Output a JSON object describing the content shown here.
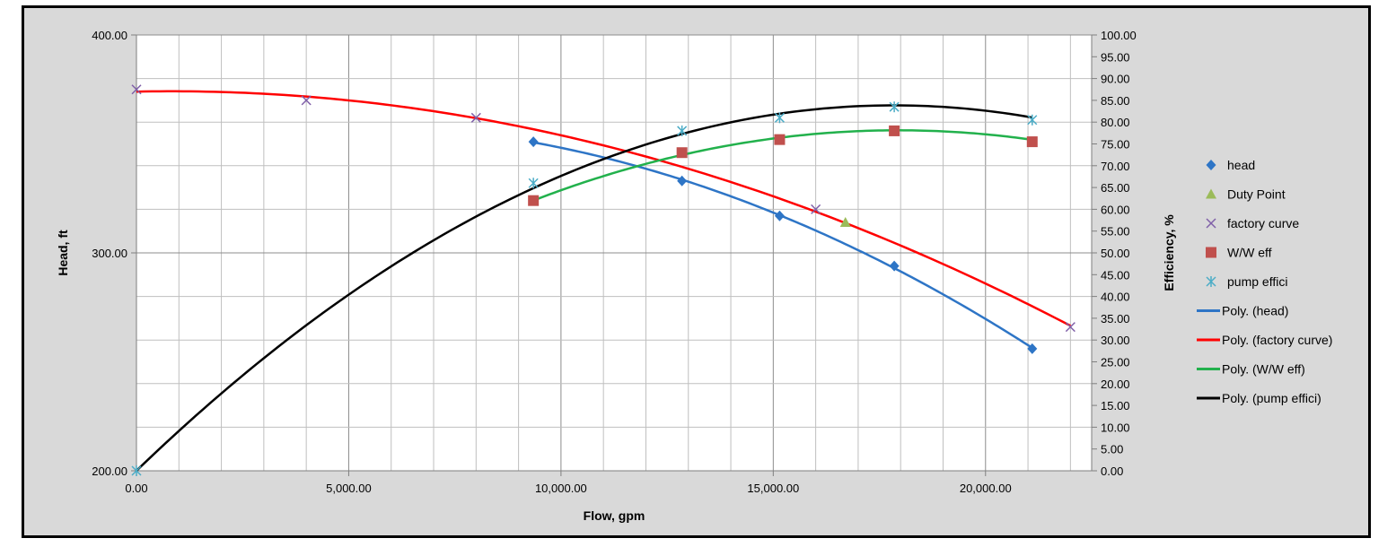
{
  "chart_data": {
    "type": "scatter",
    "xlabel": "Flow, gpm",
    "ylabel": "Head, ft",
    "y2label": "Efficiency, %",
    "xlim": [
      0,
      22500
    ],
    "ylim": [
      200,
      400
    ],
    "y2lim": [
      0,
      100
    ],
    "x_ticks": [
      "0.00",
      "5,000.00",
      "10,000.00",
      "15,000.00",
      "20,000.00"
    ],
    "y_ticks": [
      "200.00",
      "300.00",
      "400.00"
    ],
    "y2_ticks": [
      "0.00",
      "5.00",
      "10.00",
      "15.00",
      "20.00",
      "25.00",
      "30.00",
      "35.00",
      "40.00",
      "45.00",
      "50.00",
      "55.00",
      "60.00",
      "65.00",
      "70.00",
      "75.00",
      "80.00",
      "85.00",
      "90.00",
      "95.00",
      "100.00"
    ],
    "grid": true,
    "legend_position": "right",
    "series": [
      {
        "name": "head",
        "kind": "marker",
        "marker": "diamond",
        "axis": "left",
        "color": "#2e75c6",
        "x": [
          9350,
          12850,
          15150,
          17850,
          21100
        ],
        "y": [
          351,
          333,
          317,
          294,
          256
        ]
      },
      {
        "name": "Duty Point",
        "kind": "marker",
        "marker": "triangle",
        "axis": "left",
        "color": "#9bbb59",
        "x": [
          16700
        ],
        "y": [
          314
        ]
      },
      {
        "name": "factory curve",
        "kind": "marker",
        "marker": "x",
        "axis": "left",
        "color": "#7f5fa8",
        "x": [
          0,
          4000,
          8000,
          16000,
          22000
        ],
        "y": [
          375,
          370,
          362,
          320,
          266
        ]
      },
      {
        "name": "W/W eff",
        "kind": "marker",
        "marker": "square",
        "axis": "right",
        "color": "#c0504d",
        "x": [
          9350,
          12850,
          15150,
          17850,
          21100
        ],
        "y": [
          62,
          73,
          76,
          78,
          75.5
        ]
      },
      {
        "name": "pump effici",
        "kind": "marker",
        "marker": "asterisk",
        "axis": "right",
        "color": "#4bacc6",
        "x": [
          0,
          9350,
          12850,
          15150,
          17850,
          21100
        ],
        "y": [
          0,
          66,
          78,
          81,
          83.5,
          80.5
        ]
      },
      {
        "name": "Poly. (head)",
        "kind": "line",
        "axis": "left",
        "color": "#2e75c6",
        "x": [
          9350,
          12850,
          15150,
          17850,
          21100
        ],
        "y": [
          351,
          333,
          317,
          294,
          256
        ]
      },
      {
        "name": "Poly. (factory curve)",
        "kind": "line",
        "axis": "left",
        "color": "#ff0000",
        "x": [
          0,
          4000,
          8000,
          16000,
          22000
        ],
        "y": [
          375,
          370,
          362,
          320,
          266
        ]
      },
      {
        "name": "Poly. (W/W eff)",
        "kind": "line",
        "axis": "right",
        "color": "#22b14c",
        "x": [
          9350,
          12850,
          15150,
          17850,
          21100
        ],
        "y": [
          62,
          72.5,
          76.5,
          78,
          76
        ]
      },
      {
        "name": "Poly. (pump effici)",
        "kind": "line",
        "axis": "right",
        "color": "#000000",
        "x": [
          0,
          9350,
          12850,
          15150,
          17850,
          21100
        ],
        "y": [
          0,
          65,
          77,
          82,
          84,
          81
        ]
      }
    ]
  }
}
